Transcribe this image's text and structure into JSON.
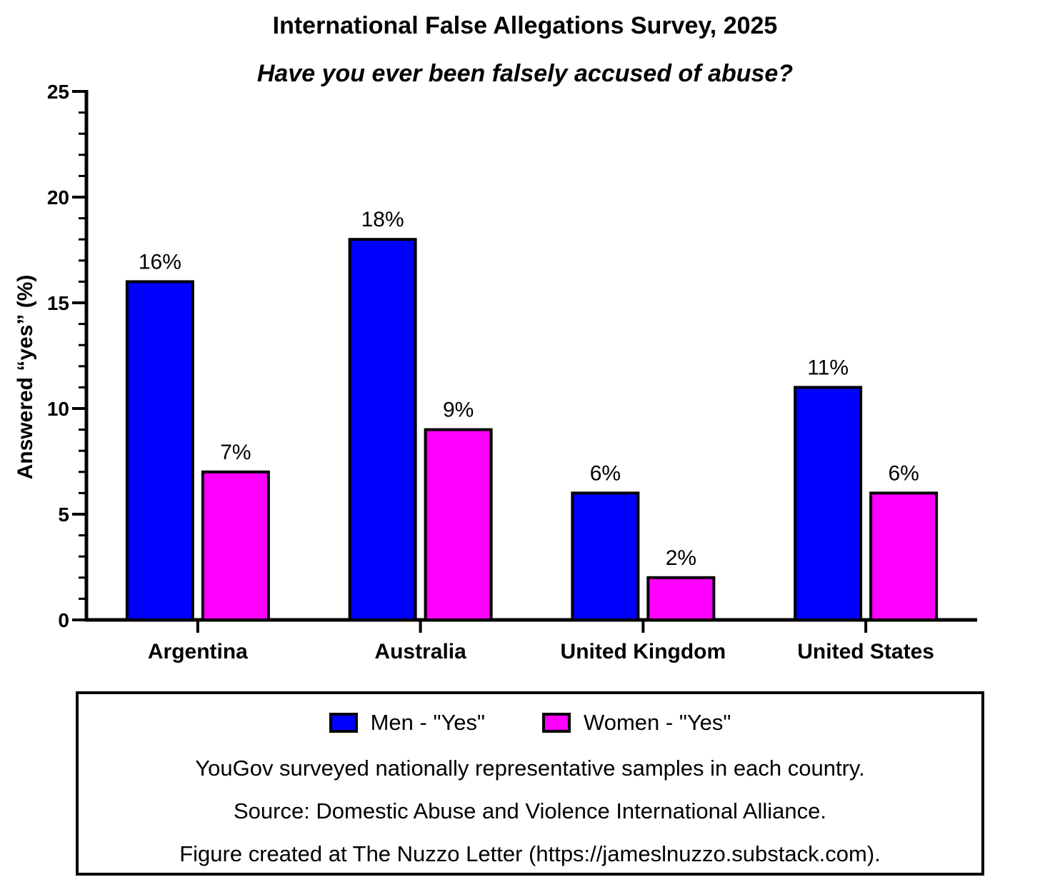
{
  "chart_data": {
    "type": "bar",
    "title": "International False Allegations Survey, 2025",
    "subtitle": "Have you ever been falsely accused of abuse?",
    "ylabel": "Answered “yes” (%)",
    "xlabel": "",
    "ylim": [
      0,
      25
    ],
    "yticks": [
      0,
      5,
      10,
      15,
      20,
      25
    ],
    "categories": [
      "Argentina",
      "Australia",
      "United Kingdom",
      "United States"
    ],
    "series": [
      {
        "name": "Men - \"Yes\"",
        "color": "#0000FF",
        "values": [
          16,
          18,
          6,
          11
        ],
        "labels": [
          "16%",
          "18%",
          "6%",
          "11%"
        ]
      },
      {
        "name": "Women - \"Yes\"",
        "color": "#FF00FF",
        "values": [
          7,
          9,
          2,
          6
        ],
        "labels": [
          "7%",
          "9%",
          "2%",
          "6%"
        ]
      }
    ],
    "grid": false,
    "legend_position": "bottom"
  },
  "notes": [
    "YouGov surveyed nationally representative samples in each country.",
    "Source: Domestic Abuse and Violence International Alliance.",
    "Figure created at The Nuzzo Letter (https://jameslnuzzo.substack.com)."
  ]
}
